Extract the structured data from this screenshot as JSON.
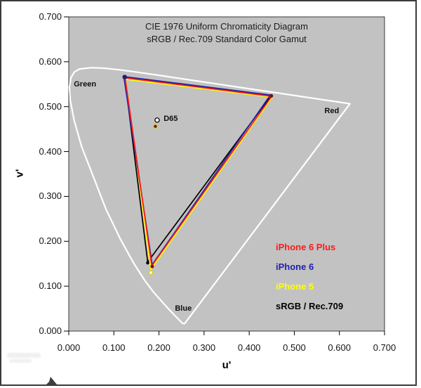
{
  "figure": {
    "title_line1": "CIE 1976 Uniform Chromaticity Diagram",
    "title_line2": "sRGB / Rec.709 Standard Color Gamut"
  },
  "axes": {
    "x": {
      "label": "u'",
      "ticks": [
        "0.000",
        "0.100",
        "0.200",
        "0.300",
        "0.400",
        "0.500",
        "0.600",
        "0.700"
      ]
    },
    "y": {
      "label": "v'",
      "ticks": [
        "0.000",
        "0.100",
        "0.200",
        "0.300",
        "0.400",
        "0.500",
        "0.600",
        "0.700"
      ]
    }
  },
  "legend": {
    "items": [
      {
        "label": "iPhone 6 Plus",
        "color": "#ff1a1a"
      },
      {
        "label": "iPhone 6",
        "color": "#2121b0"
      },
      {
        "label": "iPhone 5",
        "color": "#ffff00"
      },
      {
        "label": "sRGB / Rec.709",
        "color": "#000000"
      }
    ]
  },
  "chart_data": {
    "type": "line",
    "title": "CIE 1976 Uniform Chromaticity Diagram",
    "subtitle": "sRGB / Rec.709 Standard Color Gamut",
    "xlabel": "u'",
    "ylabel": "v'",
    "xlim": [
      0,
      0.7
    ],
    "ylim": [
      0,
      0.7
    ],
    "tick_step": 0.1,
    "grid": false,
    "legend_position": "lower-right-inside",
    "plot_background": "#c2c2c2",
    "spectral_locus": {
      "name": "CIE 1976 spectral locus",
      "color": "#ffffff",
      "closed": true,
      "points": [
        [
          0.2568,
          0.0165
        ],
        [
          0.2524,
          0.0169
        ],
        [
          0.2347,
          0.035
        ],
        [
          0.2161,
          0.0549
        ],
        [
          0.1877,
          0.0871
        ],
        [
          0.169,
          0.112
        ],
        [
          0.1441,
          0.151
        ],
        [
          0.1147,
          0.2044
        ],
        [
          0.0828,
          0.2708
        ],
        [
          0.0282,
          0.4117
        ],
        [
          0.0119,
          0.4698
        ],
        [
          0.0035,
          0.5131
        ],
        [
          0.0014,
          0.5432
        ],
        [
          0.0046,
          0.5639
        ],
        [
          0.0123,
          0.577
        ],
        [
          0.0231,
          0.5837
        ],
        [
          0.0501,
          0.5868
        ],
        [
          0.0792,
          0.5856
        ],
        [
          0.1127,
          0.5821
        ],
        [
          0.1531,
          0.5766
        ],
        [
          0.2026,
          0.5694
        ],
        [
          0.2623,
          0.5604
        ],
        [
          0.3315,
          0.5501
        ],
        [
          0.4035,
          0.5393
        ],
        [
          0.4692,
          0.5296
        ],
        [
          0.5203,
          0.5219
        ],
        [
          0.5565,
          0.5165
        ],
        [
          0.6005,
          0.5099
        ],
        [
          0.6234,
          0.5065
        ]
      ]
    },
    "series": [
      {
        "name": "sRGB / Rec.709",
        "color": "#000000",
        "closed": true,
        "points": [
          [
            0.124,
            0.566
          ],
          [
            0.449,
            0.525
          ],
          [
            0.175,
            0.154
          ]
        ]
      },
      {
        "name": "iPhone 5",
        "color": "#ffff00",
        "closed": true,
        "points": [
          [
            0.126,
            0.561
          ],
          [
            0.451,
            0.521
          ],
          [
            0.182,
            0.137
          ]
        ]
      },
      {
        "name": "iPhone 6",
        "color": "#2121b0",
        "closed": true,
        "points": [
          [
            0.122,
            0.567
          ],
          [
            0.447,
            0.526
          ],
          [
            0.185,
            0.148
          ]
        ]
      },
      {
        "name": "iPhone 6 Plus",
        "color": "#ff1a1a",
        "closed": true,
        "points": [
          [
            0.125,
            0.564
          ],
          [
            0.45,
            0.523
          ],
          [
            0.184,
            0.145
          ]
        ]
      }
    ],
    "white_point": {
      "label": "D65",
      "u": 0.198,
      "v": 0.468
    },
    "markers": [
      {
        "name": "green-primary-marker",
        "u": 0.124,
        "v": 0.566,
        "r": 3.2,
        "fill": "#1c1c86",
        "stroke": "none"
      },
      {
        "name": "red-primary-marker",
        "u": 0.449,
        "v": 0.524,
        "r": 2.6,
        "fill": "#701015",
        "stroke": "none"
      },
      {
        "name": "blue-primary-srgb-marker",
        "u": 0.175,
        "v": 0.152,
        "r": 2.3,
        "fill": "#000000",
        "stroke": "none"
      },
      {
        "name": "blue-primary-iphone6plus-marker",
        "u": 0.185,
        "v": 0.144,
        "r": 2.6,
        "fill": "#7a1014",
        "stroke": "none"
      },
      {
        "name": "blue-primary-iphone5-marker",
        "u": 0.182,
        "v": 0.13,
        "r": 2.7,
        "fill": "#f2f2d8",
        "stroke": "#d6d600"
      },
      {
        "name": "d65-reference-marker",
        "u": 0.196,
        "v": 0.47,
        "r": 3.1,
        "fill": "#ffffff",
        "stroke": "#000000"
      },
      {
        "name": "d65-measured-marker",
        "u": 0.192,
        "v": 0.456,
        "r": 2.7,
        "fill": "#7a1014",
        "stroke": "#c8c81e"
      }
    ],
    "annotations": [
      {
        "text": "Green",
        "u": 0.036,
        "v": 0.549
      },
      {
        "text": "Red",
        "u": 0.583,
        "v": 0.49
      },
      {
        "text": "Blue",
        "u": 0.254,
        "v": 0.05
      },
      {
        "text": "D65",
        "u": 0.226,
        "v": 0.473
      }
    ]
  }
}
